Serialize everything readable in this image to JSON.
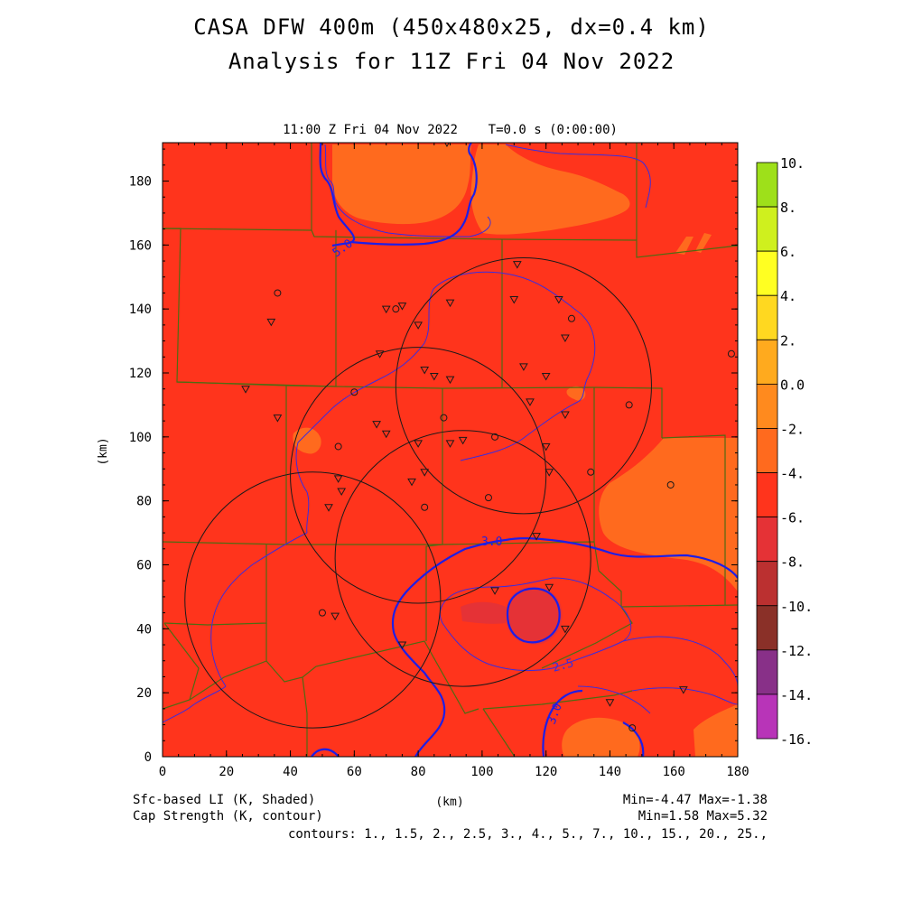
{
  "titles": {
    "line1": "CASA DFW 400m (450x480x25, dx=0.4 km)",
    "line2": "Analysis for 11Z Fri 04 Nov 2022",
    "subtitle": "11:00 Z Fri 04 Nov 2022    T=0.0 s (0:00:00)"
  },
  "axes": {
    "x_label": "(km)",
    "y_label": "(km)",
    "x_range": [
      0,
      180
    ],
    "y_range": [
      0,
      192
    ],
    "x_ticks": [
      "0",
      "20",
      "40",
      "60",
      "80",
      "100",
      "120",
      "140",
      "160",
      "180"
    ],
    "y_ticks": [
      "0",
      "20",
      "40",
      "60",
      "80",
      "100",
      "120",
      "140",
      "160",
      "180"
    ]
  },
  "colorbar": {
    "labels": [
      "10.",
      "8.",
      "6.",
      "4.",
      "2.",
      "0.0",
      "-2.",
      "-4.",
      "-6.",
      "-8.",
      "-10.",
      "-12.",
      "-14.",
      "-16."
    ],
    "colors": [
      "#9ee01a",
      "#cff01e",
      "#ffff22",
      "#ffd820",
      "#ffaa1e",
      "#ff8a1e",
      "#ff6a1e",
      "#ff341c",
      "#e53236",
      "#bb3030",
      "#8a3028",
      "#883088",
      "#b834b8",
      "#dd38e4"
    ]
  },
  "fields": {
    "shaded": "Sfc-based LI (K, Shaded)",
    "contour": "Cap Strength (K, contour)",
    "shaded_stats": "Min=-4.47 Max=-1.38",
    "contour_stats": "Min=1.58 Max=5.32",
    "contours": "contours: 1., 1.5, 2., 2.5, 3., 4., 5., 7., 10., 15., 20., 25.,"
  },
  "contour_labels": [
    "5.0",
    "3.0",
    "2.5",
    "3.0"
  ],
  "map_colors": {
    "base": "#ff341c",
    "warm_patch": "#ff6a1e",
    "cool_patch": "#e53236",
    "county_lines": "#4f6b12",
    "contour_line": "#1e1ee6",
    "thin_contour": "#3a2ce0"
  },
  "radars": [
    {
      "center_km": [
        113,
        116
      ],
      "radius_km": 40
    },
    {
      "center_km": [
        80,
        88
      ],
      "radius_km": 40
    },
    {
      "center_km": [
        94,
        62
      ],
      "radius_km": 40
    },
    {
      "center_km": [
        47,
        49
      ],
      "radius_km": 40
    }
  ],
  "stations_circle": [
    [
      36,
      145
    ],
    [
      128,
      137
    ],
    [
      60,
      114
    ],
    [
      73,
      140
    ],
    [
      88,
      106
    ],
    [
      104,
      100
    ],
    [
      55,
      97
    ],
    [
      102,
      81
    ],
    [
      82,
      78
    ],
    [
      134,
      89
    ],
    [
      146,
      110
    ],
    [
      159,
      85
    ],
    [
      178,
      126
    ],
    [
      50,
      45
    ],
    [
      147,
      9
    ]
  ],
  "stations_triangle": [
    [
      34,
      136
    ],
    [
      26,
      115
    ],
    [
      36,
      106
    ],
    [
      111,
      154
    ],
    [
      110,
      143
    ],
    [
      124,
      143
    ],
    [
      75,
      141
    ],
    [
      70,
      140
    ],
    [
      80,
      135
    ],
    [
      90,
      142
    ],
    [
      68,
      126
    ],
    [
      126,
      131
    ],
    [
      113,
      122
    ],
    [
      120,
      119
    ],
    [
      82,
      121
    ],
    [
      85,
      119
    ],
    [
      90,
      118
    ],
    [
      115,
      111
    ],
    [
      126,
      107
    ],
    [
      67,
      104
    ],
    [
      70,
      101
    ],
    [
      80,
      98
    ],
    [
      90,
      98
    ],
    [
      94,
      99
    ],
    [
      120,
      97
    ],
    [
      121,
      89
    ],
    [
      55,
      87
    ],
    [
      56,
      83
    ],
    [
      52,
      78
    ],
    [
      78,
      86
    ],
    [
      82,
      89
    ],
    [
      117,
      69
    ],
    [
      121,
      53
    ],
    [
      126,
      40
    ],
    [
      104,
      52
    ],
    [
      54,
      44
    ],
    [
      75,
      35
    ],
    [
      140,
      17
    ],
    [
      163,
      21
    ],
    [
      89,
      192
    ]
  ]
}
